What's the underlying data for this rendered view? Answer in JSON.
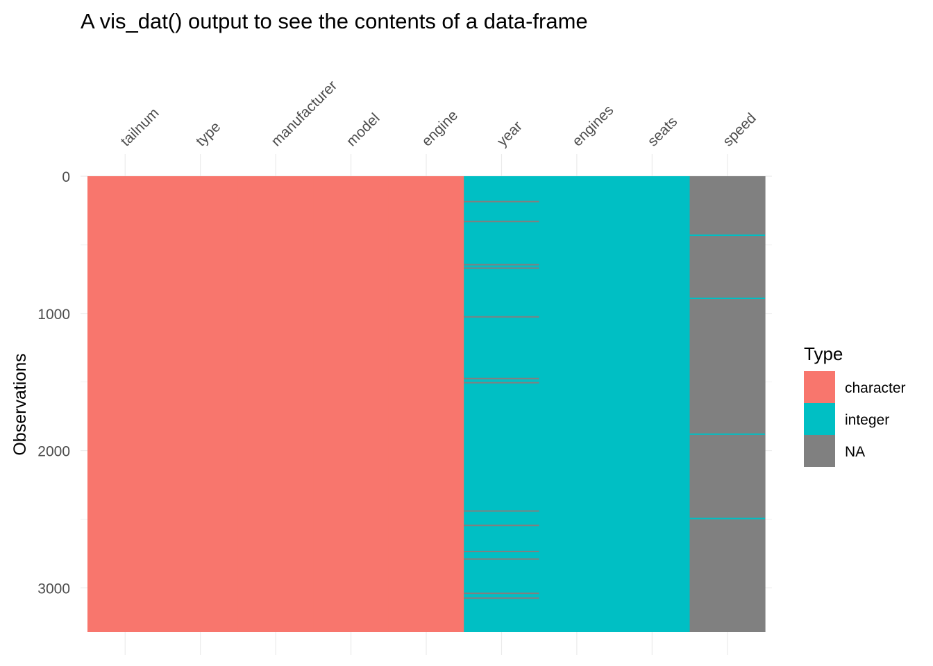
{
  "chart_data": {
    "type": "heatmap",
    "title": "A vis_dat() output to see the contents of a data-frame",
    "ylabel": "Observations",
    "n_rows": 3322,
    "ylim": [
      0,
      3322
    ],
    "y_ticks": [
      0,
      1000,
      2000,
      3000
    ],
    "y_reversed": true,
    "columns": [
      {
        "name": "tailnum",
        "type": "character",
        "na_rows": []
      },
      {
        "name": "type",
        "type": "character",
        "na_rows": []
      },
      {
        "name": "manufacturer",
        "type": "character",
        "na_rows": []
      },
      {
        "name": "model",
        "type": "character",
        "na_rows": []
      },
      {
        "name": "engine",
        "type": "character",
        "na_rows": []
      },
      {
        "name": "year",
        "type": "integer",
        "na_rows": [
          185,
          330,
          645,
          670,
          1025,
          1475,
          1505,
          2440,
          2545,
          2735,
          2790,
          3040,
          3075
        ]
      },
      {
        "name": "engines",
        "type": "integer",
        "na_rows": []
      },
      {
        "name": "seats",
        "type": "integer",
        "na_rows": []
      },
      {
        "name": "speed",
        "type": "NA",
        "present_rows": [
          430,
          890,
          1880,
          2495
        ]
      }
    ],
    "legend": {
      "title": "Type",
      "position": "right",
      "items": [
        {
          "label": "character",
          "color": "#F8766D"
        },
        {
          "label": "integer",
          "color": "#00BFC4"
        },
        {
          "label": "NA",
          "color": "#808080"
        }
      ]
    },
    "colors": {
      "character": "#F8766D",
      "integer": "#00BFC4",
      "NA": "#808080"
    },
    "grid": true
  }
}
